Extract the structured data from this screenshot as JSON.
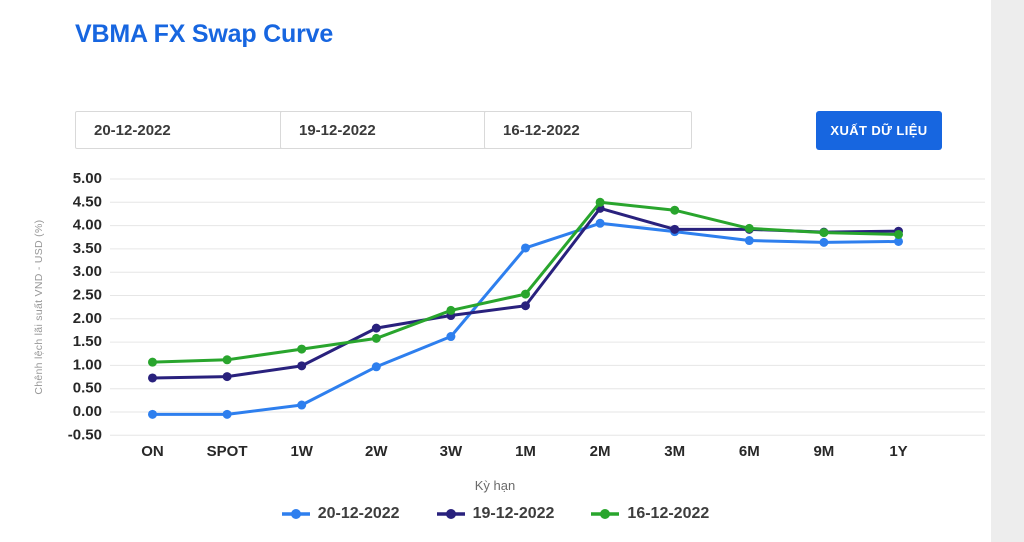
{
  "header": {
    "title": "VBMA FX Swap Curve"
  },
  "toolbar": {
    "date_inputs": [
      {
        "value": "20-12-2022"
      },
      {
        "value": "19-12-2022"
      },
      {
        "value": "16-12-2022"
      }
    ],
    "export_button_label": "XUẤT DỮ LIỆU"
  },
  "chart_data": {
    "type": "line",
    "title": "VBMA FX Swap Curve",
    "categories": [
      "ON",
      "SPOT",
      "1W",
      "2W",
      "3W",
      "1M",
      "2M",
      "3M",
      "6M",
      "9M",
      "1Y"
    ],
    "series": [
      {
        "name": "20-12-2022",
        "color": "#2e7fee",
        "values": [
          -0.05,
          -0.05,
          0.15,
          0.97,
          1.62,
          3.52,
          4.05,
          3.87,
          3.68,
          3.64,
          3.66
        ]
      },
      {
        "name": "19-12-2022",
        "color": "#29217d",
        "values": [
          0.73,
          0.76,
          0.99,
          1.8,
          2.07,
          2.28,
          4.37,
          3.92,
          3.92,
          3.86,
          3.88
        ]
      },
      {
        "name": "16-12-2022",
        "color": "#29a52d",
        "values": [
          1.07,
          1.12,
          1.35,
          1.58,
          2.18,
          2.53,
          4.5,
          4.33,
          3.94,
          3.85,
          3.81
        ]
      }
    ],
    "xlabel": "Kỳ hạn",
    "ylabel": "Chênh lệch lãi suất VND - USD (%)",
    "ylim": [
      -0.5,
      5.0
    ],
    "ytick_step": 0.5,
    "grid": true,
    "legend_position": "bottom"
  },
  "colors": {
    "accent_blue": "#1766e0",
    "grid_line": "#e6e6e6",
    "tick_label": "#282828",
    "axis_title_gray": "#979797"
  }
}
